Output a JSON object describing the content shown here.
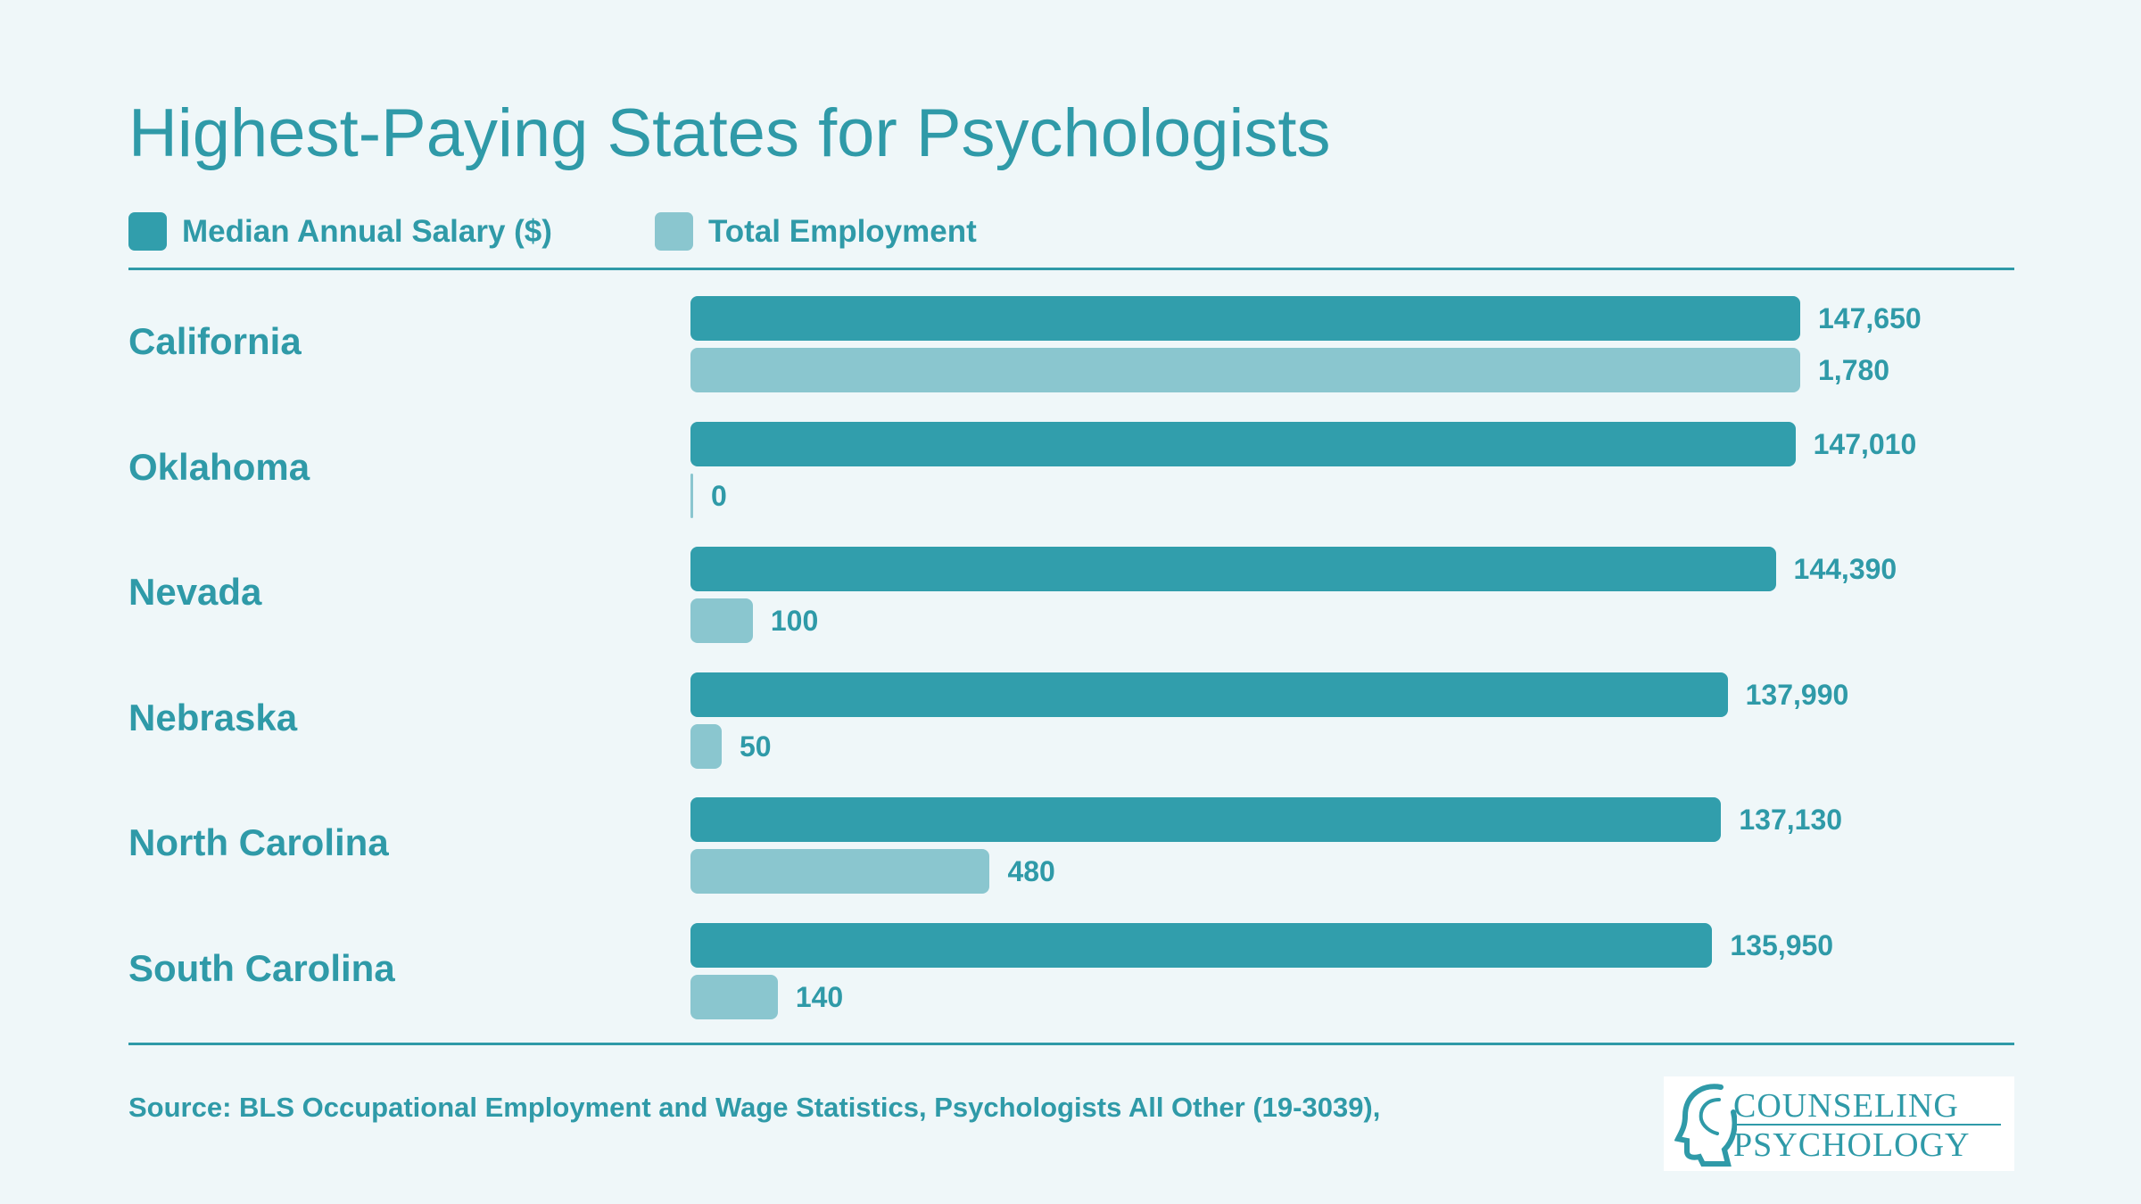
{
  "colors": {
    "salary": "#319eac",
    "employment": "#8ac6cf",
    "text": "#2f9aa8"
  },
  "chart_data": {
    "type": "bar",
    "orientation": "horizontal",
    "title": "Highest-Paying States for Psychologists",
    "categories": [
      "California",
      "Oklahoma",
      "Nevada",
      "Nebraska",
      "North Carolina",
      "South Carolina"
    ],
    "series": [
      {
        "name": "Median Annual Salary ($)",
        "values": [
          147650,
          147010,
          144390,
          137990,
          137130,
          135950
        ],
        "labels": [
          "147,650",
          "147,010",
          "144,390",
          "137,990",
          "137,130",
          "135,950"
        ]
      },
      {
        "name": "Total Employment",
        "values": [
          1780,
          0,
          100,
          50,
          480,
          140
        ],
        "labels": [
          "1,780",
          "0",
          "100",
          "50",
          "480",
          "140"
        ]
      }
    ],
    "legend_position": "top-left",
    "grid": false
  },
  "source": "Source: BLS Occupational Employment and Wage Statistics, Psychologists All Other (19-3039),",
  "logo": {
    "line1": "COUNSELING",
    "line2": "PSYCHOLOGY",
    "icon": "head-profile-icon"
  }
}
